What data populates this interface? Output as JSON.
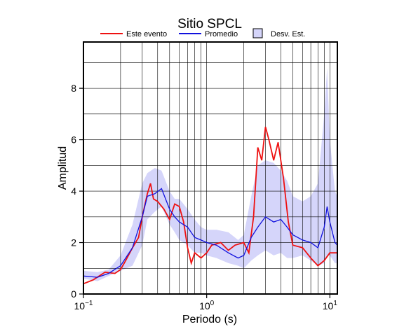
{
  "chart_data": {
    "type": "line",
    "title": "Sitio SPCL",
    "x_label": "Periodo (s)",
    "y_label": "Amplitud",
    "log_x": true,
    "grid": true,
    "xlim": [
      0.1,
      11.5
    ],
    "ylim": [
      0,
      9.8
    ],
    "xticks": [
      {
        "value": 0.1,
        "label": "10",
        "exponent": "−1"
      },
      {
        "value": 1,
        "label": "10",
        "exponent": "0"
      },
      {
        "value": 10,
        "label": "10",
        "exponent": "1"
      }
    ],
    "xgrid": [
      0.2,
      0.3,
      0.4,
      0.5,
      0.6,
      0.7,
      0.8,
      0.9,
      1,
      2,
      3,
      4,
      5,
      6,
      7,
      8,
      9,
      10
    ],
    "yticks": [
      0,
      2,
      4,
      6,
      8
    ],
    "ygrid": [
      1,
      2,
      3,
      4,
      5,
      6,
      7,
      8,
      9
    ],
    "band": {
      "name": "Desv. Est.",
      "color": "#d5d5fa",
      "x": [
        0.1,
        0.13,
        0.16,
        0.2,
        0.25,
        0.3,
        0.33,
        0.38,
        0.43,
        0.5,
        0.55,
        0.6,
        0.7,
        0.8,
        0.9,
        1.0,
        1.2,
        1.5,
        1.8,
        2.0,
        2.3,
        2.6,
        3.0,
        3.5,
        4.0,
        4.5,
        5.0,
        6.0,
        7.0,
        8.0,
        9.0,
        9.5,
        10,
        11,
        11.5
      ],
      "upper": [
        0.9,
        0.85,
        0.95,
        1.5,
        2.7,
        4.3,
        4.7,
        4.9,
        4.8,
        4.0,
        3.7,
        3.7,
        3.3,
        2.9,
        2.6,
        2.5,
        2.5,
        2.4,
        2.1,
        2.3,
        3.8,
        5.0,
        5.2,
        5.1,
        4.8,
        4.4,
        3.8,
        3.6,
        3.8,
        4.3,
        7.0,
        8.8,
        6.0,
        4.0,
        3.8
      ],
      "lower": [
        0.6,
        0.5,
        0.7,
        0.9,
        1.1,
        1.9,
        2.9,
        3.2,
        3.4,
        2.7,
        2.4,
        2.1,
        1.9,
        1.6,
        1.6,
        1.5,
        1.4,
        1.2,
        1.1,
        1.0,
        1.3,
        1.5,
        1.7,
        1.5,
        1.6,
        1.4,
        1.4,
        1.5,
        1.3,
        1.1,
        1.2,
        1.5,
        1.5,
        1.2,
        1.2
      ]
    },
    "series": [
      {
        "name": "Este evento",
        "color": "#ee1111",
        "x": [
          0.1,
          0.12,
          0.15,
          0.18,
          0.2,
          0.22,
          0.25,
          0.28,
          0.3,
          0.33,
          0.35,
          0.37,
          0.4,
          0.45,
          0.5,
          0.55,
          0.6,
          0.65,
          0.7,
          0.75,
          0.8,
          0.9,
          1.0,
          1.1,
          1.3,
          1.5,
          1.7,
          2.0,
          2.2,
          2.4,
          2.6,
          2.8,
          3.0,
          3.2,
          3.5,
          3.8,
          4.2,
          4.6,
          5.0,
          6.0,
          7.0,
          8.0,
          9.0,
          10,
          11.5
        ],
        "values": [
          0.4,
          0.55,
          0.85,
          0.8,
          0.95,
          1.3,
          1.8,
          2.2,
          3.0,
          3.9,
          4.3,
          3.7,
          3.6,
          3.3,
          2.9,
          3.5,
          3.4,
          2.8,
          1.8,
          1.2,
          1.6,
          1.4,
          1.6,
          1.9,
          2.0,
          1.7,
          1.9,
          2.0,
          1.6,
          3.0,
          5.7,
          5.2,
          6.5,
          6.0,
          5.2,
          5.9,
          4.5,
          2.8,
          1.9,
          1.8,
          1.4,
          1.1,
          1.3,
          1.6,
          1.6
        ]
      },
      {
        "name": "Promedio",
        "color": "#1111dd",
        "x": [
          0.1,
          0.13,
          0.16,
          0.2,
          0.25,
          0.3,
          0.33,
          0.38,
          0.43,
          0.5,
          0.55,
          0.6,
          0.7,
          0.8,
          0.9,
          1.0,
          1.2,
          1.5,
          1.8,
          2.0,
          2.3,
          2.6,
          3.0,
          3.5,
          4.0,
          4.5,
          5.0,
          6.0,
          7.0,
          8.0,
          9.0,
          9.5,
          10,
          11,
          11.5
        ],
        "values": [
          0.7,
          0.65,
          0.8,
          1.1,
          1.8,
          3.0,
          3.8,
          3.9,
          4.1,
          3.3,
          3.0,
          2.8,
          2.6,
          2.2,
          2.1,
          2.0,
          1.9,
          1.6,
          1.4,
          1.5,
          2.2,
          2.6,
          3.0,
          2.8,
          2.9,
          2.6,
          2.3,
          2.1,
          2.0,
          1.8,
          2.6,
          3.4,
          2.8,
          2.0,
          1.9
        ]
      }
    ]
  }
}
